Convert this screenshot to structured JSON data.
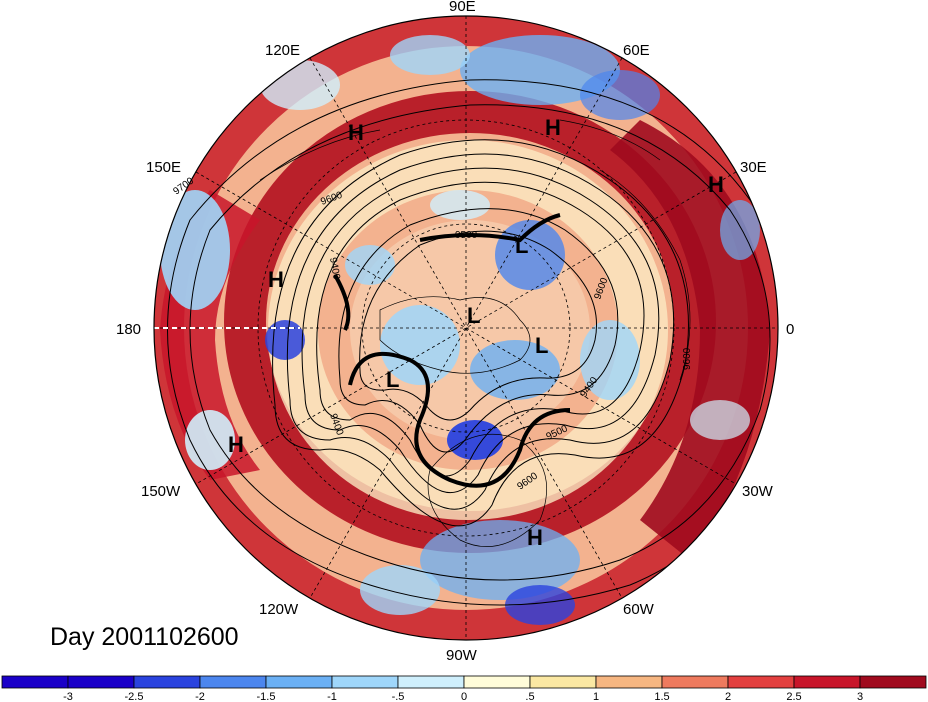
{
  "map": {
    "projection": "north-polar-stereographic",
    "day_label": "Day 2001102600",
    "longitude_labels": [
      {
        "lon": "90E"
      },
      {
        "lon": "120E"
      },
      {
        "lon": "60E"
      },
      {
        "lon": "150E"
      },
      {
        "lon": "30E"
      },
      {
        "lon": "180"
      },
      {
        "lon": "0"
      },
      {
        "lon": "150W"
      },
      {
        "lon": "30W"
      },
      {
        "lon": "120W"
      },
      {
        "lon": "60W"
      },
      {
        "lon": "90W"
      }
    ],
    "pressure_centers": [
      "H",
      "H",
      "H",
      "H",
      "H",
      "H",
      "L",
      "L",
      "L",
      "L"
    ],
    "contour_labels": [
      "9700",
      "9600",
      "9400",
      "9500",
      "9600",
      "9400",
      "9600",
      "9600",
      "9500",
      "9400"
    ],
    "colors": {
      "land_outline": "#000000",
      "contour": "#000000",
      "background": "#ffffff"
    }
  },
  "colorbar": {
    "tick_labels": [
      "-3",
      "-2.5",
      "-2",
      "-1.5",
      "-1",
      "-.5",
      "0",
      ".5",
      "1",
      "1.5",
      "2",
      "2.5",
      "3"
    ],
    "colors": [
      "#1a00c8",
      "#2a43de",
      "#4c86ee",
      "#6bb0f4",
      "#9fd6fa",
      "#cfeffc",
      "#fffcd9",
      "#fbe8a3",
      "#f6b681",
      "#ee7a5e",
      "#e3403f",
      "#c8152a",
      "#a00a1e"
    ]
  }
}
